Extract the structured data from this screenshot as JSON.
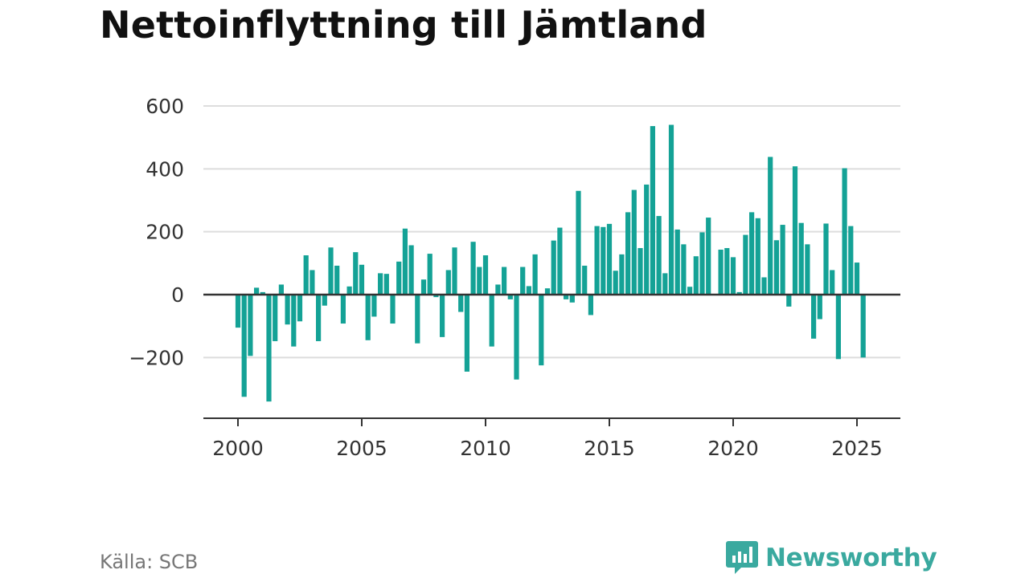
{
  "chart_data": {
    "type": "bar",
    "title": "Nettoinflyttning till Jämtland",
    "xlabel": "",
    "ylabel": "",
    "x_ticks": [
      "2000",
      "2005",
      "2010",
      "2015",
      "2020",
      "2025"
    ],
    "y_ticks": [
      600,
      400,
      200,
      0,
      -200
    ],
    "y_tick_labels": [
      "600",
      "400",
      "200",
      "0",
      "−200"
    ],
    "xlim": [
      1999.75,
      2025.65
    ],
    "ylim": [
      -390,
      640
    ],
    "grid": true,
    "bar_color": "#14a296",
    "x": [
      2000.0,
      2000.25,
      2000.5,
      2000.75,
      2001.0,
      2001.25,
      2001.5,
      2001.75,
      2002.0,
      2002.25,
      2002.5,
      2002.75,
      2003.0,
      2003.25,
      2003.5,
      2003.75,
      2004.0,
      2004.25,
      2004.5,
      2004.75,
      2005.0,
      2005.25,
      2005.5,
      2005.75,
      2006.0,
      2006.25,
      2006.5,
      2006.75,
      2007.0,
      2007.25,
      2007.5,
      2007.75,
      2008.0,
      2008.25,
      2008.5,
      2008.75,
      2009.0,
      2009.25,
      2009.5,
      2009.75,
      2010.0,
      2010.25,
      2010.5,
      2010.75,
      2011.0,
      2011.25,
      2011.5,
      2011.75,
      2012.0,
      2012.25,
      2012.5,
      2012.75,
      2013.0,
      2013.25,
      2013.5,
      2013.75,
      2014.0,
      2014.25,
      2014.5,
      2014.75,
      2015.0,
      2015.25,
      2015.5,
      2015.75,
      2016.0,
      2016.25,
      2016.5,
      2016.75,
      2017.0,
      2017.25,
      2017.5,
      2017.75,
      2018.0,
      2018.25,
      2018.5,
      2018.75,
      2019.0,
      2019.25,
      2019.5,
      2019.75,
      2020.0,
      2020.25,
      2020.5,
      2020.75,
      2021.0,
      2021.25,
      2021.5,
      2021.75,
      2022.0,
      2022.25,
      2022.5,
      2022.75,
      2023.0,
      2023.25,
      2023.5,
      2023.75,
      2024.0,
      2024.25,
      2024.5,
      2024.75,
      2025.0,
      2025.25
    ],
    "values": [
      -105,
      -325,
      -195,
      22,
      8,
      -340,
      -148,
      32,
      -95,
      -165,
      -85,
      125,
      78,
      -148,
      -35,
      150,
      92,
      -92,
      26,
      135,
      95,
      -145,
      -70,
      68,
      66,
      -92,
      105,
      210,
      157,
      -155,
      48,
      130,
      -8,
      -135,
      78,
      150,
      -55,
      -245,
      168,
      88,
      125,
      -165,
      32,
      88,
      -15,
      -270,
      88,
      27,
      128,
      -225,
      20,
      172,
      213,
      -15,
      -25,
      330,
      92,
      -65,
      218,
      215,
      225,
      76,
      128,
      262,
      333,
      148,
      350,
      536,
      250,
      68,
      540,
      207,
      160,
      25,
      122,
      198,
      245,
      0,
      143,
      148,
      119,
      8,
      190,
      262,
      243,
      55,
      438,
      173,
      222,
      -38,
      408,
      228,
      160,
      -140,
      -78,
      226,
      78,
      -205,
      402,
      218,
      102,
      -200
    ]
  },
  "source": "Källa: SCB",
  "brand": {
    "name": "Newsworthy",
    "icon": "bar-chart-speech-icon",
    "color": "#3aa99f"
  }
}
